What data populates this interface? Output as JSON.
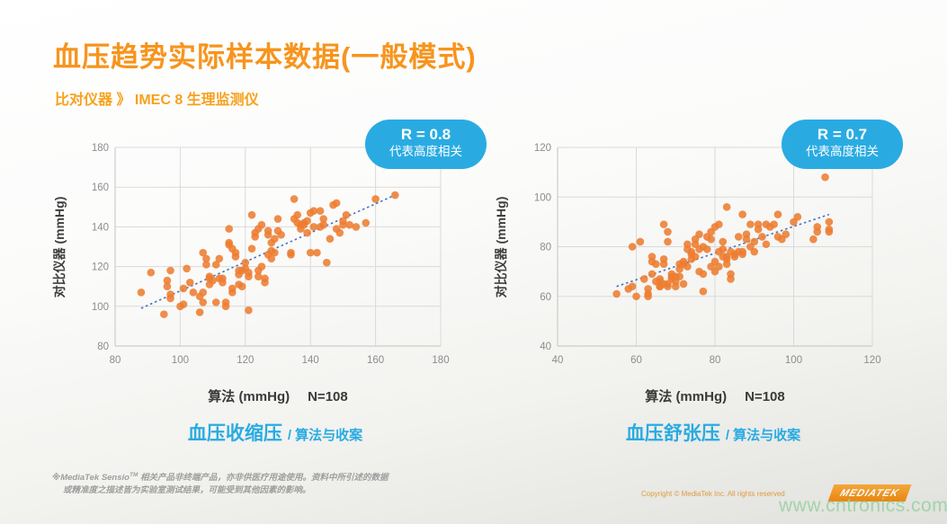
{
  "title": "血压趋势实际样本数据(一般模式)",
  "subtitle": "比对仪器 》 IMEC 8 生理监测仪",
  "colors": {
    "accent_orange": "#F7941D",
    "point_orange": "#ED7D31",
    "badge_blue": "#29ABE2",
    "caption_blue": "#29ABE2",
    "trend_blue": "#4472C4",
    "gridline": "#DADADA",
    "axis_line": "#C3C3C3",
    "watermark_green": "#9CD3A5"
  },
  "chart_data": [
    {
      "type": "scatter",
      "badge_r": "R = 0.8",
      "badge_desc": "代表高度相关",
      "ylabel": "对比仪器 (mmHg)",
      "xlabel": "算法 (mmHg)",
      "n_label": "N=108",
      "caption_main": "血压收缩压",
      "caption_sub": "/ 算法与收案",
      "xlim": [
        80,
        180
      ],
      "ylim": [
        80,
        180
      ],
      "xticks": [
        80,
        100,
        120,
        140,
        160,
        180
      ],
      "yticks": [
        80,
        100,
        120,
        140,
        160,
        180
      ],
      "grid": true,
      "legend": "none",
      "trend": {
        "x1": 88,
        "y1": 99,
        "x2": 166,
        "y2": 156
      },
      "points": [
        [
          88,
          107
        ],
        [
          91,
          117
        ],
        [
          95,
          96
        ],
        [
          96,
          113
        ],
        [
          96,
          110
        ],
        [
          97,
          118
        ],
        [
          97,
          106
        ],
        [
          97,
          104
        ],
        [
          100,
          100
        ],
        [
          101,
          101
        ],
        [
          101,
          109
        ],
        [
          102,
          119
        ],
        [
          103,
          112
        ],
        [
          104,
          107
        ],
        [
          106,
          97
        ],
        [
          106,
          105
        ],
        [
          107,
          107
        ],
        [
          107,
          102
        ],
        [
          107,
          127
        ],
        [
          108,
          124
        ],
        [
          108,
          121
        ],
        [
          109,
          114
        ],
        [
          109,
          111
        ],
        [
          109,
          115
        ],
        [
          110,
          113
        ],
        [
          111,
          102
        ],
        [
          111,
          121
        ],
        [
          112,
          124
        ],
        [
          112,
          114
        ],
        [
          113,
          112
        ],
        [
          113,
          114
        ],
        [
          114,
          102
        ],
        [
          114,
          100
        ],
        [
          115,
          132
        ],
        [
          115,
          139
        ],
        [
          115,
          131
        ],
        [
          116,
          129
        ],
        [
          116,
          109
        ],
        [
          116,
          107
        ],
        [
          117,
          127
        ],
        [
          117,
          125
        ],
        [
          118,
          118
        ],
        [
          118,
          116
        ],
        [
          118,
          111
        ],
        [
          119,
          110
        ],
        [
          119,
          118
        ],
        [
          120,
          119
        ],
        [
          120,
          122
        ],
        [
          121,
          117
        ],
        [
          121,
          98
        ],
        [
          121,
          115
        ],
        [
          122,
          129
        ],
        [
          122,
          146
        ],
        [
          123,
          135
        ],
        [
          123,
          137
        ],
        [
          124,
          115
        ],
        [
          124,
          118
        ],
        [
          124,
          139
        ],
        [
          125,
          141
        ],
        [
          125,
          120
        ],
        [
          126,
          112
        ],
        [
          126,
          114
        ],
        [
          127,
          138
        ],
        [
          127,
          136
        ],
        [
          127,
          126
        ],
        [
          128,
          124
        ],
        [
          128,
          128
        ],
        [
          128,
          132
        ],
        [
          129,
          134
        ],
        [
          129,
          127
        ],
        [
          130,
          144
        ],
        [
          130,
          138
        ],
        [
          131,
          136
        ],
        [
          134,
          127
        ],
        [
          134,
          126
        ],
        [
          135,
          154
        ],
        [
          135,
          144
        ],
        [
          136,
          142
        ],
        [
          136,
          146
        ],
        [
          137,
          139
        ],
        [
          137,
          141
        ],
        [
          138,
          142
        ],
        [
          138,
          141
        ],
        [
          139,
          137
        ],
        [
          139,
          143
        ],
        [
          140,
          127
        ],
        [
          140,
          147
        ],
        [
          141,
          148
        ],
        [
          141,
          140
        ],
        [
          142,
          127
        ],
        [
          143,
          148
        ],
        [
          143,
          140
        ],
        [
          144,
          141
        ],
        [
          144,
          144
        ],
        [
          145,
          122
        ],
        [
          146,
          134
        ],
        [
          147,
          151
        ],
        [
          148,
          152
        ],
        [
          148,
          139
        ],
        [
          149,
          137
        ],
        [
          150,
          141
        ],
        [
          150,
          143
        ],
        [
          151,
          146
        ],
        [
          152,
          141
        ],
        [
          154,
          140
        ],
        [
          157,
          142
        ],
        [
          160,
          154
        ],
        [
          166,
          156
        ]
      ]
    },
    {
      "type": "scatter",
      "badge_r": "R = 0.7",
      "badge_desc": "代表高度相关",
      "ylabel": "对比仪器 (mmHg)",
      "xlabel": "算法 (mmHg)",
      "n_label": "N=108",
      "caption_main": "血压舒张压",
      "caption_sub": "/ 算法与收案",
      "xlim": [
        40,
        120
      ],
      "ylim": [
        40,
        120
      ],
      "xticks": [
        40,
        60,
        80,
        100,
        120
      ],
      "yticks": [
        40,
        60,
        80,
        100,
        120
      ],
      "grid": true,
      "legend": "none",
      "trend": {
        "x1": 55,
        "y1": 64,
        "x2": 109,
        "y2": 93
      },
      "points": [
        [
          55,
          61
        ],
        [
          58,
          63
        ],
        [
          59,
          64
        ],
        [
          59,
          80
        ],
        [
          60,
          60
        ],
        [
          61,
          82
        ],
        [
          62,
          67
        ],
        [
          63,
          63
        ],
        [
          63,
          61
        ],
        [
          63,
          60
        ],
        [
          64,
          69
        ],
        [
          64,
          76
        ],
        [
          64,
          74
        ],
        [
          65,
          73
        ],
        [
          65,
          66
        ],
        [
          66,
          64
        ],
        [
          66,
          67
        ],
        [
          66,
          64
        ],
        [
          66,
          66
        ],
        [
          67,
          75
        ],
        [
          67,
          73
        ],
        [
          67,
          65
        ],
        [
          67,
          89
        ],
        [
          68,
          86
        ],
        [
          68,
          82
        ],
        [
          68,
          65
        ],
        [
          68,
          64
        ],
        [
          69,
          67
        ],
        [
          69,
          68
        ],
        [
          69,
          69
        ],
        [
          70,
          66
        ],
        [
          70,
          64
        ],
        [
          70,
          68
        ],
        [
          71,
          71
        ],
        [
          71,
          73
        ],
        [
          71,
          68
        ],
        [
          72,
          65
        ],
        [
          72,
          73
        ],
        [
          72,
          74
        ],
        [
          73,
          72
        ],
        [
          73,
          81
        ],
        [
          73,
          79
        ],
        [
          74,
          75
        ],
        [
          74,
          77
        ],
        [
          74,
          78
        ],
        [
          75,
          76
        ],
        [
          75,
          81
        ],
        [
          75,
          83
        ],
        [
          76,
          85
        ],
        [
          76,
          79
        ],
        [
          76,
          70
        ],
        [
          77,
          62
        ],
        [
          77,
          69
        ],
        [
          77,
          80
        ],
        [
          78,
          79
        ],
        [
          78,
          84
        ],
        [
          79,
          83
        ],
        [
          79,
          86
        ],
        [
          79,
          72
        ],
        [
          80,
          70
        ],
        [
          80,
          88
        ],
        [
          80,
          74
        ],
        [
          81,
          72
        ],
        [
          81,
          89
        ],
        [
          81,
          78
        ],
        [
          82,
          76
        ],
        [
          82,
          79
        ],
        [
          82,
          82
        ],
        [
          83,
          75
        ],
        [
          83,
          73
        ],
        [
          83,
          76
        ],
        [
          83,
          96
        ],
        [
          84,
          78
        ],
        [
          84,
          67
        ],
        [
          84,
          69
        ],
        [
          85,
          76
        ],
        [
          85,
          77
        ],
        [
          86,
          78
        ],
        [
          86,
          84
        ],
        [
          87,
          93
        ],
        [
          87,
          77
        ],
        [
          87,
          78
        ],
        [
          88,
          85
        ],
        [
          88,
          83
        ],
        [
          89,
          89
        ],
        [
          89,
          80
        ],
        [
          90,
          78
        ],
        [
          90,
          82
        ],
        [
          91,
          89
        ],
        [
          91,
          87
        ],
        [
          92,
          84
        ],
        [
          93,
          89
        ],
        [
          93,
          81
        ],
        [
          94,
          88
        ],
        [
          95,
          89
        ],
        [
          96,
          93
        ],
        [
          96,
          84
        ],
        [
          97,
          83
        ],
        [
          98,
          85
        ],
        [
          100,
          90
        ],
        [
          101,
          92
        ],
        [
          105,
          83
        ],
        [
          106,
          88
        ],
        [
          106,
          86
        ],
        [
          108,
          108
        ],
        [
          109,
          90
        ],
        [
          109,
          86
        ],
        [
          109,
          87
        ]
      ]
    }
  ],
  "footer": {
    "disclaimer_pre": "※MediaTek Sensio",
    "disclaimer_tm": "TM",
    "disclaimer_post": " 相关产品非终端产品，亦非供医疗用途使用。资料中所引述的数据",
    "disclaimer_line2": "或精准度之描述皆为实验室测试结果，可能受到其他因素的影响。",
    "copyright": "Copyright © MediaTek Inc. All rights reserved",
    "logo_text": "MEDIATEK",
    "watermark": "www.cntronics.com"
  }
}
